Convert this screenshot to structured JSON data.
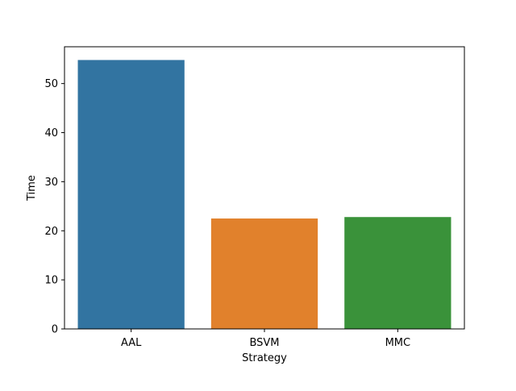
{
  "chart_data": {
    "type": "bar",
    "title": "",
    "xlabel": "Strategy",
    "ylabel": "Time",
    "categories": [
      "AAL",
      "BSVM",
      "MMC"
    ],
    "values": [
      54.8,
      22.5,
      22.8
    ],
    "colors": [
      "#3274a1",
      "#e1812c",
      "#3a923a"
    ],
    "ylim": [
      0,
      57.5
    ],
    "yticks": [
      0,
      10,
      20,
      30,
      40,
      50
    ],
    "grid": false,
    "legend": "none"
  }
}
